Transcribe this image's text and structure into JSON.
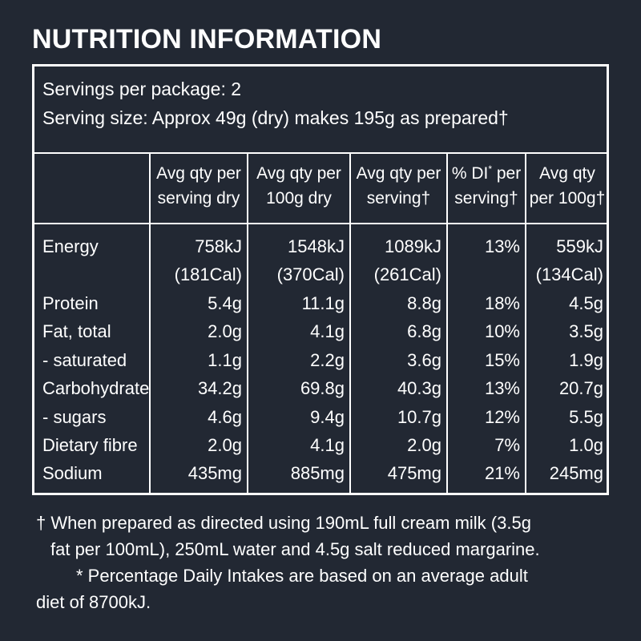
{
  "title": "NUTRITION INFORMATION",
  "servings_per_package": "Servings per package: 2",
  "serving_size": "Serving size: Approx 49g (dry) makes 195g as prepared†",
  "columns": [
    {
      "line1": "Avg qty per",
      "line2": "serving dry"
    },
    {
      "line1": "Avg qty per",
      "line2": "100g dry"
    },
    {
      "line1": "Avg qty per",
      "line2": "serving†"
    },
    {
      "line1a": "% DI",
      "line1sup": "*",
      "line1b": " per",
      "line2": "serving†"
    },
    {
      "line1": "Avg qty",
      "line2": "per 100g†"
    }
  ],
  "rows": [
    {
      "label": "Energy",
      "values": [
        "758kJ",
        "1548kJ",
        "1089kJ",
        "13%",
        "559kJ"
      ]
    },
    {
      "label": "",
      "values": [
        "(181Cal)",
        "(370Cal)",
        "(261Cal)",
        "",
        "(134Cal)"
      ]
    },
    {
      "label": "Protein",
      "values": [
        "5.4g",
        "11.1g",
        "8.8g",
        "18%",
        "4.5g"
      ]
    },
    {
      "label": "Fat, total",
      "values": [
        "2.0g",
        "4.1g",
        "6.8g",
        "10%",
        "3.5g"
      ]
    },
    {
      "label": " - saturated",
      "values": [
        "1.1g",
        "2.2g",
        "3.6g",
        "15%",
        "1.9g"
      ]
    },
    {
      "label": "Carbohydrate",
      "values": [
        "34.2g",
        "69.8g",
        "40.3g",
        "13%",
        "20.7g"
      ]
    },
    {
      "label": " - sugars",
      "values": [
        "4.6g",
        "9.4g",
        "10.7g",
        "12%",
        "5.5g"
      ]
    },
    {
      "label": "Dietary fibre",
      "values": [
        "2.0g",
        "4.1g",
        "2.0g",
        "7%",
        "1.0g"
      ]
    },
    {
      "label": "Sodium",
      "values": [
        "435mg",
        "885mg",
        "475mg",
        "21%",
        "245mg"
      ]
    }
  ],
  "footnotes": [
    "† When prepared as directed using 190mL full cream milk (3.5g",
    "fat per 100mL), 250mL water and 4.5g salt reduced margarine.",
    "* Percentage Daily Intakes are based on an average adult",
    "diet of 8700kJ."
  ]
}
